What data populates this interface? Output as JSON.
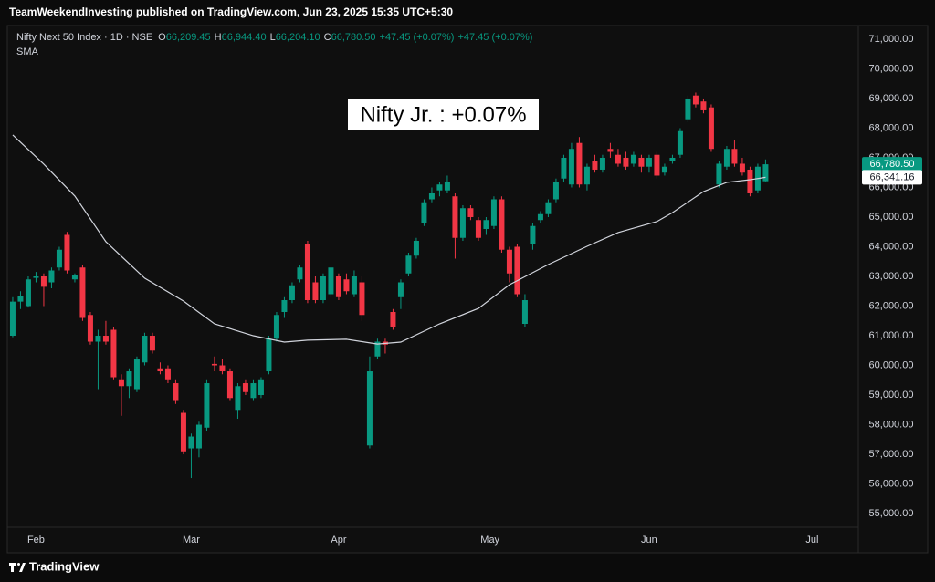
{
  "header": {
    "attribution": "TeamWeekendInvesting published on TradingView.com, Jun 23, 2025 15:35 UTC+5:30",
    "symbol": "Nifty Next 50 Index · 1D · NSE",
    "ohlc": [
      {
        "key": "O",
        "value": "66,209.45"
      },
      {
        "key": "H",
        "value": "66,944.40"
      },
      {
        "key": "L",
        "value": "66,204.10"
      },
      {
        "key": "C",
        "value": "66,780.50"
      }
    ],
    "change": [
      "+47.45 (+0.07%)",
      "+47.45 (+0.07%)"
    ]
  },
  "footer": {
    "brand": "TradingView"
  },
  "chart_data": {
    "type": "candlestick",
    "annotation": "Nifty Jr. : +0.07%",
    "xlim": [
      -0.7,
      108.95
    ],
    "xticks": [
      {
        "value": 3,
        "label": "Feb"
      },
      {
        "value": 23,
        "label": "Mar"
      },
      {
        "value": 42,
        "label": "Apr"
      },
      {
        "value": 61.5,
        "label": "May"
      },
      {
        "value": 82,
        "label": "Jun"
      },
      {
        "value": 103,
        "label": "Jul"
      }
    ],
    "ylim": [
      54540,
      71460
    ],
    "yticks": [
      {
        "value": 55000,
        "label": "55,000.00"
      },
      {
        "value": 56000,
        "label": "56,000.00"
      },
      {
        "value": 57000,
        "label": "57,000.00"
      },
      {
        "value": 58000,
        "label": "58,000.00"
      },
      {
        "value": 59000,
        "label": "59,000.00"
      },
      {
        "value": 60000,
        "label": "60,000.00"
      },
      {
        "value": 61000,
        "label": "61,000.00"
      },
      {
        "value": 62000,
        "label": "62,000.00"
      },
      {
        "value": 63000,
        "label": "63,000.00"
      },
      {
        "value": 64000,
        "label": "64,000.00"
      },
      {
        "value": 65000,
        "label": "65,000.00"
      },
      {
        "value": 66000,
        "label": "66,000.00"
      },
      {
        "value": 67000,
        "label": "67,000.00"
      },
      {
        "value": 68000,
        "label": "68,000.00"
      },
      {
        "value": 69000,
        "label": "69,000.00"
      },
      {
        "value": 70000,
        "label": "70,000.00"
      },
      {
        "value": 71000,
        "label": "71,000.00"
      }
    ],
    "grid": false,
    "series": [
      {
        "name": "Nifty Next 50 Index",
        "up_color": "#089981",
        "down_color": "#f23645",
        "open": [
          61000,
          62150,
          62000,
          62950,
          63000,
          62800,
          63300,
          64400,
          62900,
          63300,
          61700,
          60800,
          61000,
          61200,
          59500,
          59300,
          59200,
          60100,
          61000,
          59900,
          59900,
          59400,
          58400,
          57200,
          57200,
          57900,
          60050,
          60000,
          59800,
          58500,
          59400,
          58900,
          59000,
          59800,
          60900,
          61800,
          62200,
          62900,
          64100,
          62800,
          62200,
          62400,
          63000,
          62900,
          62400,
          62800,
          57300,
          60300,
          60800,
          61800,
          62300,
          63100,
          63700,
          64800,
          65600,
          65900,
          65900,
          65700,
          64300,
          65300,
          64900,
          64600,
          64700,
          65600,
          63900,
          64000,
          61400,
          64100,
          64900,
          65100,
          65600,
          66300,
          66100,
          67500,
          66100,
          66900,
          66600,
          67300,
          67100,
          67000,
          66800,
          67000,
          66700,
          67100,
          66500,
          66900,
          67100,
          68300,
          69100,
          68900,
          68700,
          66100,
          66700,
          67300,
          66800,
          66600,
          65900,
          66209.45
        ],
        "high": [
          62300,
          62500,
          63000,
          63150,
          63100,
          63300,
          64000,
          64500,
          63100,
          63400,
          61800,
          61200,
          61500,
          61300,
          59700,
          59900,
          60300,
          61100,
          61100,
          60100,
          60000,
          59500,
          58500,
          57700,
          58100,
          59500,
          60300,
          60200,
          59900,
          59400,
          59500,
          59500,
          59600,
          61000,
          61800,
          62300,
          62800,
          63400,
          64200,
          63000,
          63100,
          63300,
          63100,
          63100,
          63200,
          63000,
          60300,
          60900,
          60900,
          61900,
          62900,
          63800,
          64300,
          65600,
          66000,
          66200,
          66400,
          65800,
          65400,
          65400,
          65000,
          65000,
          65700,
          65700,
          64000,
          64100,
          62400,
          64800,
          65200,
          65600,
          66300,
          67100,
          67500,
          67700,
          66800,
          67100,
          67100,
          67500,
          67300,
          67200,
          67200,
          67100,
          67100,
          67200,
          66800,
          67100,
          68000,
          69100,
          69200,
          69000,
          68800,
          66900,
          67400,
          67600,
          67000,
          66700,
          66800,
          66944.4
        ],
        "low": [
          60950,
          61900,
          61950,
          62800,
          62000,
          62600,
          63200,
          63100,
          62800,
          61500,
          60700,
          59200,
          60700,
          59500,
          58300,
          58900,
          59100,
          60000,
          60400,
          59700,
          59400,
          58700,
          57000,
          56200,
          56900,
          57800,
          59800,
          59700,
          58800,
          58200,
          59000,
          58800,
          58900,
          59700,
          60800,
          61600,
          62100,
          62800,
          62100,
          62100,
          62100,
          62300,
          62200,
          62400,
          62300,
          61500,
          57200,
          60200,
          60400,
          61200,
          61900,
          63000,
          63600,
          64700,
          65500,
          65700,
          65800,
          63600,
          64200,
          64900,
          64200,
          64400,
          64600,
          63800,
          62800,
          62300,
          61300,
          63900,
          64800,
          65000,
          65500,
          66200,
          66000,
          66000,
          65900,
          66500,
          66500,
          67000,
          66700,
          66600,
          66700,
          66500,
          66500,
          66300,
          66400,
          66800,
          67000,
          68200,
          68700,
          68500,
          67200,
          66000,
          66600,
          66700,
          66400,
          65700,
          65800,
          66204.1
        ],
        "close": [
          62150,
          62350,
          62900,
          63000,
          62650,
          63200,
          63900,
          63200,
          63050,
          61600,
          60800,
          61000,
          60800,
          59600,
          59300,
          59800,
          60200,
          61000,
          60500,
          59800,
          59500,
          58800,
          57100,
          57600,
          58000,
          59400,
          60000,
          59800,
          58900,
          59300,
          59100,
          59400,
          59500,
          60900,
          61700,
          62200,
          62700,
          63300,
          62200,
          62200,
          63000,
          63300,
          62300,
          62500,
          63000,
          61700,
          59800,
          60800,
          60700,
          61300,
          62800,
          63700,
          64200,
          65500,
          65800,
          66100,
          66200,
          64300,
          65300,
          65000,
          64300,
          64900,
          65600,
          63900,
          63100,
          62400,
          62200,
          64700,
          65100,
          65500,
          66200,
          67000,
          67300,
          66100,
          66700,
          66600,
          67000,
          67200,
          66800,
          66700,
          67100,
          66700,
          67000,
          66400,
          66700,
          67000,
          67900,
          69000,
          68800,
          68600,
          67300,
          66800,
          67300,
          66800,
          66500,
          65800,
          66700,
          66780.5
        ]
      },
      {
        "name": "SMA",
        "type": "line",
        "color": "#d1d4dc",
        "x": [
          0,
          4,
          8,
          12,
          17,
          22,
          26,
          31,
          35,
          38,
          43,
          47,
          50,
          55,
          60,
          64,
          69,
          74,
          78,
          83,
          85,
          89,
          92,
          95,
          97
        ],
        "values": [
          67770,
          66785,
          65710,
          64170,
          62940,
          62170,
          61400,
          61000,
          60785,
          60850,
          60880,
          60720,
          60785,
          61400,
          61920,
          62720,
          63400,
          64015,
          64480,
          64850,
          65150,
          65860,
          66170,
          66260,
          66341.16
        ]
      }
    ],
    "price_tags": [
      {
        "value": 66780.5,
        "label": "66,780.50",
        "color": "#089981",
        "text_color": "#ffffff"
      },
      {
        "value": 66341.16,
        "label": "66,341.16",
        "color": "#ffffff",
        "text_color": "#131722"
      }
    ]
  }
}
